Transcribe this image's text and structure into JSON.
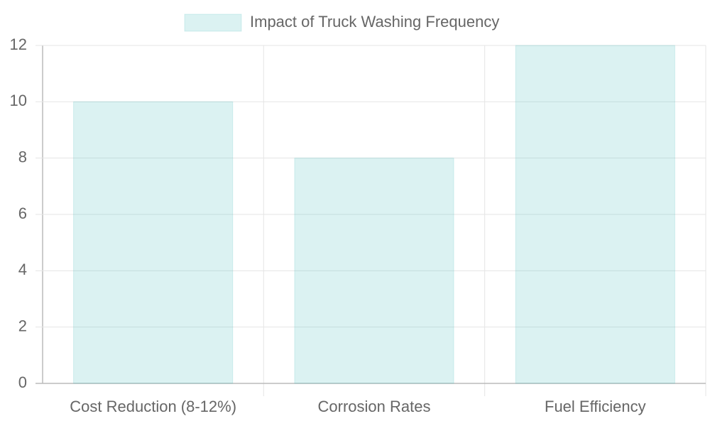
{
  "chart_data": {
    "type": "bar",
    "categories": [
      "Cost Reduction (8-12%)",
      "Corrosion Rates",
      "Fuel Efficiency"
    ],
    "series": [
      {
        "name": "Impact of Truck Washing Frequency",
        "color": "rgba(75,192,192,0.2)",
        "values": [
          10,
          8,
          12
        ]
      }
    ],
    "ylim": [
      0,
      12
    ],
    "yticks": [
      0,
      2,
      4,
      6,
      8,
      10,
      12
    ],
    "grid": true,
    "legend": "top"
  }
}
